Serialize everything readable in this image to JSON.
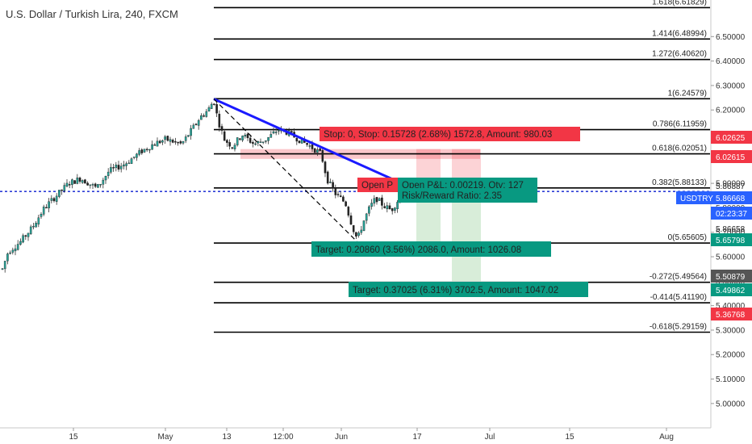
{
  "chart_data": {
    "type": "candlestick",
    "title": "U.S. Dollar / Turkish Lira, 240, FXCM",
    "ylim": [
      4.93,
      6.53
    ],
    "y_ticks": [
      "5.00000",
      "5.10000",
      "5.20000",
      "5.30000",
      "5.40000",
      "5.50000",
      "5.60000",
      "5.70000",
      "5.80000",
      "5.90000",
      "6.00000",
      "6.10000",
      "6.20000",
      "6.30000",
      "6.40000",
      "6.50000"
    ],
    "x_ticks": [
      "15",
      "May",
      "13",
      "12:00",
      "Jun",
      "17",
      "Jul",
      "15",
      "Aug"
    ],
    "fib_levels": [
      {
        "level": 1.618,
        "price": 6.61829,
        "label": "1.618(6.61829)"
      },
      {
        "level": 1.414,
        "price": 6.48994,
        "label": "1.414(6.48994)"
      },
      {
        "level": 1.272,
        "price": 6.4062,
        "label": "1.272(6.40620)"
      },
      {
        "level": 1,
        "price": 6.24579,
        "label": "1(6.24579)"
      },
      {
        "level": 0.786,
        "price": 6.11959,
        "label": "0.786(6.11959)"
      },
      {
        "level": 0.618,
        "price": 6.02051,
        "label": "0.618(6.02051)"
      },
      {
        "level": 0.382,
        "price": 5.88133,
        "label": "0.382(5.88133)"
      },
      {
        "level": 0,
        "price": 5.65605,
        "label": "0(5.65605)"
      },
      {
        "level": -0.272,
        "price": 5.49564,
        "label": "-0.272(5.49564)"
      },
      {
        "level": -0.414,
        "price": 5.4119,
        "label": "-0.414(5.41190)"
      },
      {
        "level": -0.618,
        "price": 5.29159,
        "label": "-0.618(5.29159)"
      }
    ],
    "price_tags": [
      {
        "price": 6.02625,
        "label": "6.02625",
        "color": "#f23645"
      },
      {
        "price": 6.02615,
        "label": "6.02615",
        "color": "#f23645"
      },
      {
        "price": 5.86887,
        "label": "5.86887",
        "color": "#ffffff"
      },
      {
        "price": 5.86668,
        "label": "5.86668",
        "color": "#2962ff"
      },
      {
        "price": 5.86658,
        "label": "5.86658",
        "color": "#ffffff"
      },
      {
        "price": 5.65798,
        "label": "5.65798",
        "color": "#089981"
      },
      {
        "price": 5.50879,
        "label": "5.50879",
        "color": "#555555"
      },
      {
        "price": 5.49862,
        "label": "5.49862",
        "color": "#089981"
      },
      {
        "price": 5.36768,
        "label": "5.36768",
        "color": "#f23645"
      }
    ],
    "symbol_tag": "USDTRY",
    "countdown": "02:23:37",
    "current_price": 5.86668,
    "annotations": {
      "stop": "Stop: 0, Stop: 0.15728 (2.68%) 1572.8, Amount: 980.03",
      "open_pnl_1": "Open P",
      "open_pnl_2": "Open P&L: 0.00219, Qty: 127",
      "risk_reward": "Risk/Reward Ratio: 2.35",
      "target1": "Target: 0.20860 (3.56%) 2086.0, Amount: 1026.08",
      "target2": "Target: 0.37025 (6.31%) 3702.5, Amount: 1047.02"
    }
  }
}
